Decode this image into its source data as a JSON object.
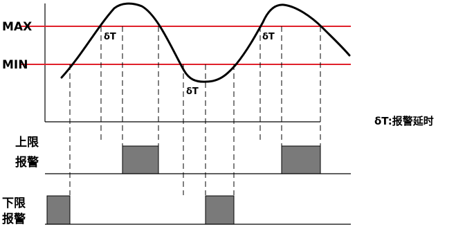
{
  "thresholds": {
    "max_label": "MAX",
    "min_label": "MIN",
    "color": "#e0202a"
  },
  "delay_marker": "δT",
  "legend": "δT:报警延时",
  "tracks": {
    "upper": {
      "line1": "上限",
      "line2": "报警"
    },
    "lower": {
      "line1": "下限",
      "line2": "报警"
    }
  },
  "alarm_fill_color": "#7a7a7a"
}
